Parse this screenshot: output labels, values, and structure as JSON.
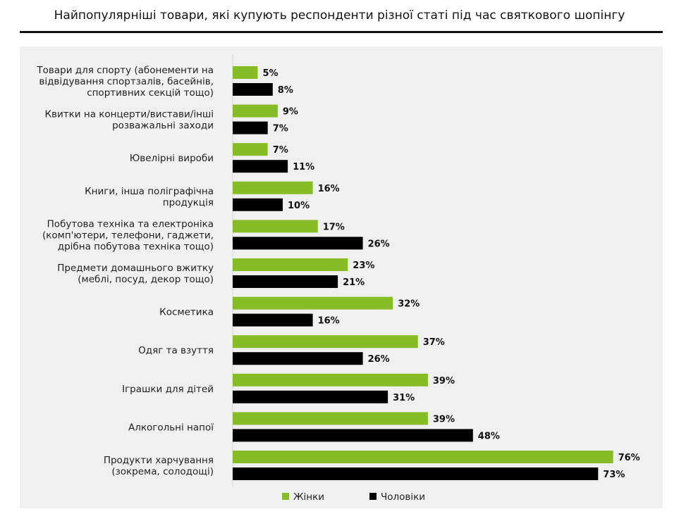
{
  "chart_data": {
    "type": "bar",
    "orientation": "horizontal",
    "title": "Найпопулярніші товари, які купують респонденти різної статі під час святкового шопінгу",
    "categories": [
      [
        "Товари для спорту (абонементи на",
        "відвідування спортзалів, басейнів,",
        "спортивних секцій тощо)"
      ],
      [
        "Квитки на концерти/вистави/інші",
        "розважальні заходи"
      ],
      [
        "Ювелірні вироби"
      ],
      [
        "Книги, інша поліграфічна",
        "продукція"
      ],
      [
        "Побутова техніка та електроніка",
        "(комп'ютери, телефони, гаджети,",
        "дрібна побутова техніка тощо)"
      ],
      [
        "Предмети домашнього вжитку",
        "(меблі, посуд, декор тощо)"
      ],
      [
        "Косметика"
      ],
      [
        "Одяг та взуття"
      ],
      [
        "Іграшки для дітей"
      ],
      [
        "Алкогольні напої"
      ],
      [
        "Продукти харчування",
        "(зокрема, солодощі)"
      ]
    ],
    "series": [
      {
        "name": "Жінки",
        "color": "#86bc25",
        "values": [
          5,
          9,
          7,
          16,
          17,
          23,
          32,
          37,
          39,
          39,
          76
        ],
        "labels": [
          "5%",
          "9%",
          "7%",
          "16%",
          "17%",
          "23%",
          "32%",
          "37%",
          "39%",
          "39%",
          "76%"
        ]
      },
      {
        "name": "Чоловіки",
        "color": "#000000",
        "values": [
          8,
          7,
          11,
          10,
          26,
          21,
          16,
          26,
          31,
          48,
          73
        ],
        "labels": [
          "8%",
          "7%",
          "11%",
          "10%",
          "26%",
          "21%",
          "16%",
          "26%",
          "31%",
          "48%",
          "73%"
        ]
      }
    ],
    "xlim": [
      0,
      100
    ],
    "unit": "%",
    "grid": false,
    "legend": "bottom-center"
  }
}
